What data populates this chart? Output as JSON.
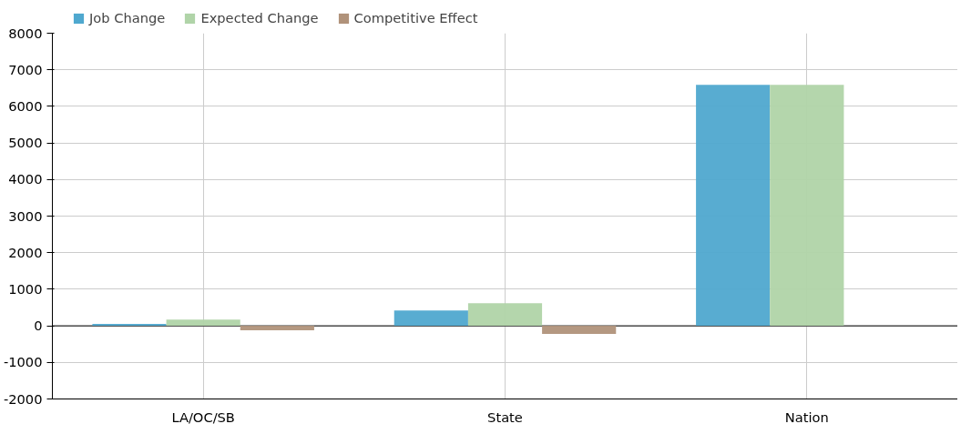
{
  "chart_data": {
    "type": "bar",
    "categories": [
      "LA/OC/SB",
      "State",
      "Nation"
    ],
    "series": [
      {
        "name": "Job Change",
        "color": "#4fa8cf",
        "values": [
          50,
          420,
          6590
        ]
      },
      {
        "name": "Expected Change",
        "color": "#b0d4a8",
        "values": [
          170,
          620,
          6590
        ]
      },
      {
        "name": "Competitive Effect",
        "color": "#b0927a",
        "values": [
          -120,
          -220,
          0
        ]
      }
    ],
    "ylim": [
      -2000,
      8000
    ],
    "yticks": [
      -2000,
      -1000,
      0,
      1000,
      2000,
      3000,
      4000,
      5000,
      6000,
      7000,
      8000
    ],
    "grid": true,
    "legend": "top left"
  }
}
